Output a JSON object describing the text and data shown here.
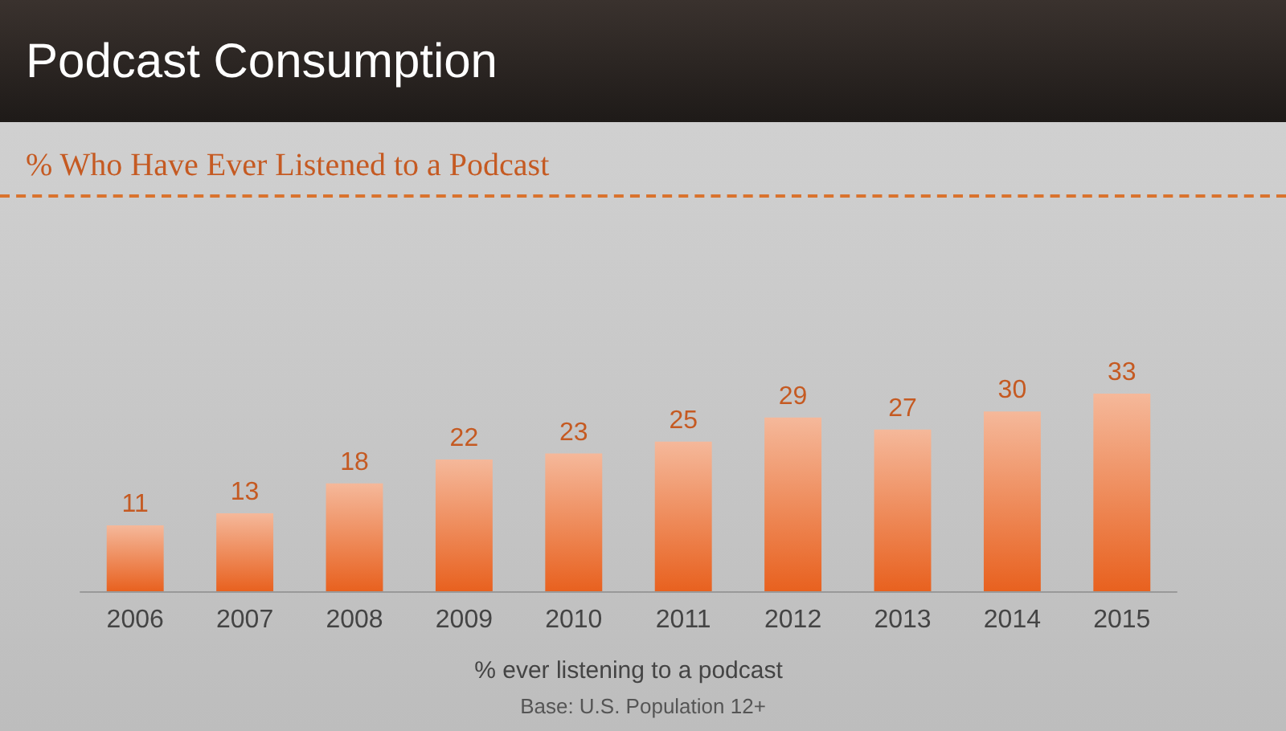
{
  "chart_data": {
    "type": "bar",
    "title": "Podcast Consumption",
    "subtitle": "% Who Have Ever Listened to a Podcast",
    "categories": [
      "2006",
      "2007",
      "2008",
      "2009",
      "2010",
      "2011",
      "2012",
      "2013",
      "2014",
      "2015"
    ],
    "values": [
      11,
      13,
      18,
      22,
      23,
      25,
      29,
      27,
      30,
      33
    ],
    "color": "#e8611f",
    "data_labels": true,
    "grid": false,
    "xlabel": "% ever listening to a podcast",
    "annotations": [
      "Base: U.S. Population 12+"
    ]
  }
}
